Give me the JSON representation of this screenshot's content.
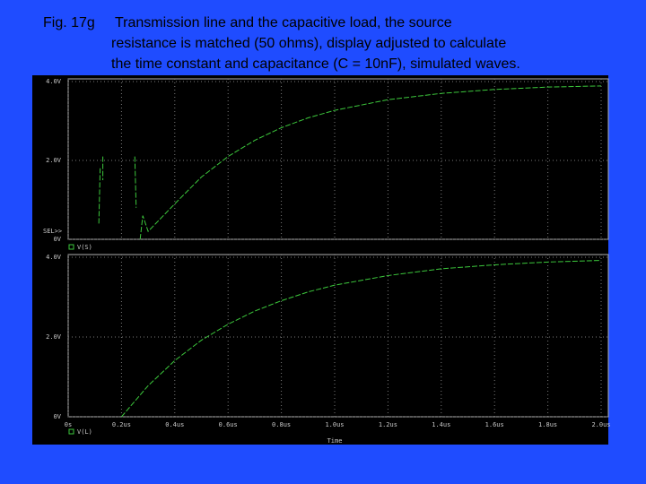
{
  "caption": {
    "label": "Fig. 17g",
    "lines": [
      "Transmission line and the capacitive load, the source",
      "resistance is matched (50 ohms), display adjusted to calculate",
      "the time constant and capacitance (C = 10nF), simulated waves."
    ]
  },
  "chart_data": [
    {
      "type": "line",
      "selector": "SEL>>",
      "x": [
        0.115,
        0.12,
        0.125,
        0.13,
        0.13,
        0.2,
        0.25,
        0.255,
        0.26,
        0.27,
        0.28,
        0.3,
        0.4,
        0.5,
        0.6,
        0.7,
        0.8,
        0.9,
        1.0,
        1.2,
        1.4,
        1.6,
        1.8,
        2.0
      ],
      "series": [
        {
          "name": "V(S)",
          "color": "#3cc83c",
          "values": [
            0.4,
            1.8,
            null,
            2.1,
            1.5,
            null,
            2.1,
            0.8,
            null,
            0,
            0.6,
            0.2,
            0.9,
            1.58,
            2.1,
            2.51,
            2.83,
            3.08,
            3.27,
            3.54,
            3.7,
            3.8,
            3.86,
            3.89
          ]
        }
      ],
      "xlim": [
        0,
        2.0
      ],
      "xticks": [
        0,
        0.2,
        0.4,
        0.6,
        0.8,
        1.0,
        1.2,
        1.4,
        1.6,
        1.8,
        2.0
      ],
      "ylim": [
        0,
        4
      ],
      "yticks": [
        {
          "value": 0,
          "label": "0V"
        },
        {
          "value": 2,
          "label": "2.0V"
        },
        {
          "value": 4,
          "label": "4.0V"
        }
      ],
      "grid": true
    },
    {
      "type": "line",
      "x_label": "Time",
      "x": [
        0.2,
        0.3,
        0.4,
        0.5,
        0.6,
        0.7,
        0.8,
        0.9,
        1.0,
        1.2,
        1.4,
        1.6,
        1.8,
        2.0
      ],
      "series": [
        {
          "name": "V(L)",
          "color": "#3cc83c",
          "values": [
            0,
            0.78,
            1.41,
            1.92,
            2.32,
            2.65,
            2.91,
            3.13,
            3.3,
            3.54,
            3.71,
            3.81,
            3.88,
            3.92
          ]
        }
      ],
      "xlim": [
        0,
        2.0
      ],
      "xticks": [
        {
          "value": 0,
          "label": "0s"
        },
        {
          "value": 0.2,
          "label": "0.2us"
        },
        {
          "value": 0.4,
          "label": "0.4us"
        },
        {
          "value": 0.6,
          "label": "0.6us"
        },
        {
          "value": 0.8,
          "label": "0.8us"
        },
        {
          "value": 1.0,
          "label": "1.0us"
        },
        {
          "value": 1.2,
          "label": "1.2us"
        },
        {
          "value": 1.4,
          "label": "1.4us"
        },
        {
          "value": 1.6,
          "label": "1.6us"
        },
        {
          "value": 1.8,
          "label": "1.8us"
        },
        {
          "value": 2.0,
          "label": "2.0us"
        }
      ],
      "ylim": [
        0,
        4
      ],
      "yticks": [
        {
          "value": 0,
          "label": "0V"
        },
        {
          "value": 2,
          "label": "2.0V"
        },
        {
          "value": 4,
          "label": "4.0V"
        }
      ],
      "grid": true
    }
  ]
}
